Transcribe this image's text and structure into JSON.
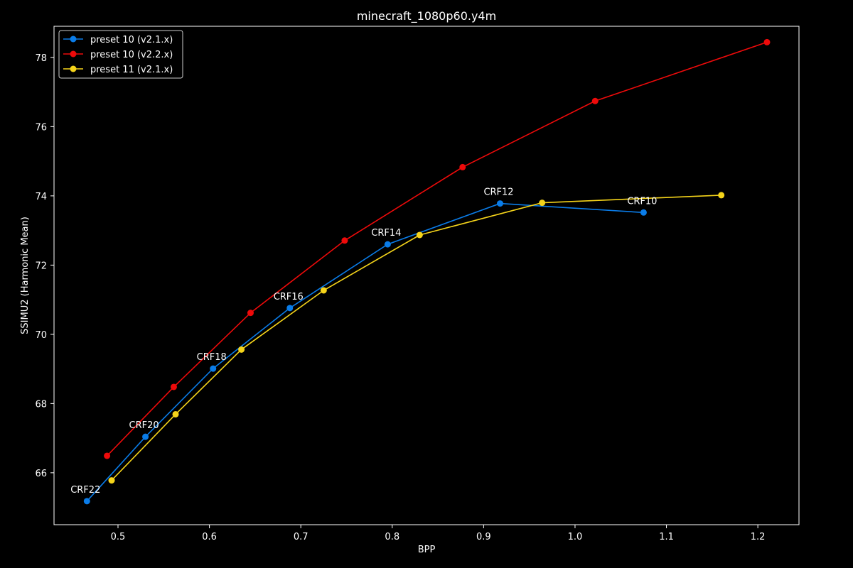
{
  "chart_data": {
    "type": "line",
    "title": "minecraft_1080p60.y4m",
    "xlabel": "BPP",
    "ylabel": "SSIMU2 (Harmonic Mean)",
    "xlim": [
      0.43,
      1.245
    ],
    "ylim": [
      64.5,
      78.9
    ],
    "xticks": [
      0.5,
      0.6,
      0.7,
      0.8,
      0.9,
      1.0,
      1.1,
      1.2
    ],
    "xtick_labels": [
      "0.5",
      "0.6",
      "0.7",
      "0.8",
      "0.9",
      "1.0",
      "1.1",
      "1.2"
    ],
    "yticks": [
      66,
      68,
      70,
      72,
      74,
      76,
      78
    ],
    "ytick_labels": [
      "66",
      "68",
      "70",
      "72",
      "74",
      "76",
      "78"
    ],
    "grid": false,
    "legend_position": "top-left",
    "series": [
      {
        "name": "preset 10 (v2.1.x)",
        "color": "#0a7ce8",
        "x": [
          0.466,
          0.53,
          0.604,
          0.688,
          0.795,
          0.918,
          1.075
        ],
        "y": [
          65.18,
          67.04,
          69.01,
          70.76,
          72.6,
          73.78,
          73.52
        ]
      },
      {
        "name": "preset 10 (v2.2.x)",
        "color": "#ee0a0a",
        "x": [
          0.488,
          0.561,
          0.645,
          0.748,
          0.877,
          1.022,
          1.21
        ],
        "y": [
          66.49,
          68.48,
          70.62,
          72.71,
          74.83,
          76.74,
          78.44
        ]
      },
      {
        "name": "preset 11 (v2.1.x)",
        "color": "#f5d41a",
        "x": [
          0.493,
          0.563,
          0.635,
          0.725,
          0.83,
          0.964,
          1.16
        ],
        "y": [
          65.78,
          67.69,
          69.56,
          71.27,
          72.87,
          73.8,
          74.02
        ]
      }
    ],
    "annotations": [
      {
        "text": "CRF22",
        "x": 0.466,
        "y": 65.18
      },
      {
        "text": "CRF20",
        "x": 0.53,
        "y": 67.04
      },
      {
        "text": "CRF18",
        "x": 0.604,
        "y": 69.01
      },
      {
        "text": "CRF16",
        "x": 0.688,
        "y": 70.76
      },
      {
        "text": "CRF14",
        "x": 0.795,
        "y": 72.6
      },
      {
        "text": "CRF12",
        "x": 0.918,
        "y": 73.78
      },
      {
        "text": "CRF10",
        "x": 1.075,
        "y": 73.52
      }
    ]
  }
}
